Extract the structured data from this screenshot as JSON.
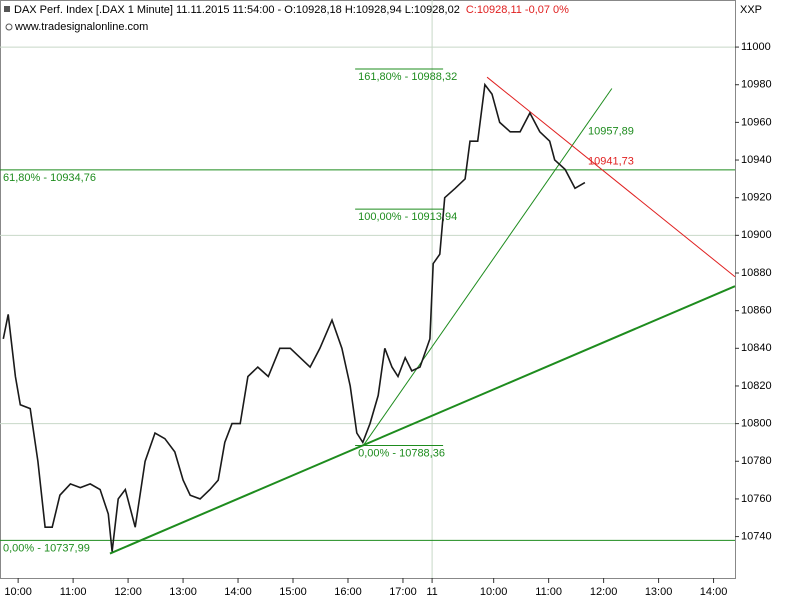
{
  "chart_data": {
    "type": "line",
    "title": "DAX Perf. Index [.DAX  1 Minute]  11.11.2015 11:54:00 - O:10928,18 H:10928,94 L:10928,02",
    "title_change": "C:10928,11 -0,07 0%",
    "subtitle": "www.tradesignalonline.com",
    "axis_label": "XXP",
    "xlim": [
      9.67,
      23.04
    ],
    "ylim": [
      10718,
      11025
    ],
    "yticks": [
      10740,
      10760,
      10780,
      10800,
      10820,
      10840,
      10860,
      10880,
      10900,
      10920,
      10940,
      10960,
      10980,
      11000
    ],
    "ygrid": [
      10800,
      10900,
      11000
    ],
    "xticks": [
      {
        "value": 10,
        "label": "10:00"
      },
      {
        "value": 11,
        "label": "11:00"
      },
      {
        "value": 12,
        "label": "12:00"
      },
      {
        "value": 13,
        "label": "13:00"
      },
      {
        "value": 14,
        "label": "14:00"
      },
      {
        "value": 15,
        "label": "15:00"
      },
      {
        "value": 16,
        "label": "16:00"
      },
      {
        "value": 17,
        "label": "17:00"
      },
      {
        "value": 17.53,
        "label": "11"
      },
      {
        "value": 18.65,
        "label": "10:00"
      },
      {
        "value": 19.65,
        "label": "11:00"
      },
      {
        "value": 20.65,
        "label": "12:00"
      },
      {
        "value": 21.65,
        "label": "13:00"
      },
      {
        "value": 22.65,
        "label": "14:00"
      }
    ],
    "day_break": 17.53,
    "series": [
      {
        "name": "DAX Perf. Index",
        "color": "#1a1a1a",
        "x": [
          9.73,
          9.82,
          9.95,
          10.04,
          10.22,
          10.36,
          10.49,
          10.62,
          10.76,
          10.95,
          11.13,
          11.31,
          11.49,
          11.64,
          11.71,
          11.82,
          11.95,
          12.13,
          12.31,
          12.49,
          12.67,
          12.85,
          13.0,
          13.13,
          13.31,
          13.49,
          13.64,
          13.76,
          13.89,
          14.04,
          14.18,
          14.36,
          14.55,
          14.76,
          14.95,
          15.13,
          15.31,
          15.49,
          15.71,
          15.89,
          16.04,
          16.16,
          16.27,
          16.4,
          16.55,
          16.67,
          16.8,
          16.91,
          17.04,
          17.16,
          17.31,
          17.49,
          17.55,
          17.67,
          17.76,
          17.95,
          18.13,
          18.22,
          18.36,
          18.49,
          18.62,
          18.76,
          18.95,
          19.13,
          19.31,
          19.49,
          19.67,
          19.76,
          19.95,
          20.13,
          20.31
        ],
        "values": [
          10845,
          10858,
          10825,
          10810,
          10808,
          10780,
          10745,
          10745,
          10762,
          10768,
          10766,
          10768,
          10765,
          10752,
          10732,
          10760,
          10765,
          10745,
          10780,
          10795,
          10792,
          10785,
          10770,
          10762,
          10760,
          10765,
          10770,
          10790,
          10800,
          10800,
          10825,
          10830,
          10825,
          10840,
          10840,
          10835,
          10830,
          10840,
          10855,
          10840,
          10820,
          10795,
          10790,
          10800,
          10815,
          10840,
          10830,
          10825,
          10835,
          10828,
          10830,
          10845,
          10885,
          10890,
          10920,
          10925,
          10930,
          10950,
          10950,
          10980,
          10975,
          10960,
          10955,
          10955,
          10965,
          10955,
          10950,
          10940,
          10935,
          10925,
          10928
        ]
      }
    ],
    "levels": [
      {
        "label": "61,80% - 10934,76",
        "value": 10934.76,
        "x": [
          9.67,
          23.04
        ]
      },
      {
        "label": "0,00% - 10737,99",
        "value": 10737.99,
        "x": [
          9.67,
          23.04
        ]
      },
      {
        "label": "161,80% - 10988,32",
        "value": 10988.32,
        "x": [
          16.13,
          17.73
        ]
      },
      {
        "label": "100,00% - 10913,94",
        "value": 10913.94,
        "x": [
          16.13,
          17.73
        ]
      },
      {
        "label": "0,00% - 10788,36",
        "value": 10788.36,
        "x": [
          16.13,
          17.73
        ]
      }
    ],
    "trendlines": [
      {
        "color": "#1e8c1e",
        "x": [
          11.67,
          23.04
        ],
        "y": [
          10731,
          10873
        ],
        "width": 2
      },
      {
        "color": "#1e8c1e",
        "x": [
          16.27,
          20.8
        ],
        "y": [
          10788,
          10978
        ],
        "width": 1
      },
      {
        "color": "#e02020",
        "x": [
          18.53,
          23.04
        ],
        "y": [
          10984,
          10878
        ],
        "width": 1
      }
    ],
    "line_labels": [
      {
        "label": "10957,89",
        "value": 10957.89,
        "color": "#1e8c1e"
      },
      {
        "label": "10941,73",
        "value": 10941.73,
        "color": "#e02020"
      }
    ],
    "level_color": "#1e8c1e"
  }
}
